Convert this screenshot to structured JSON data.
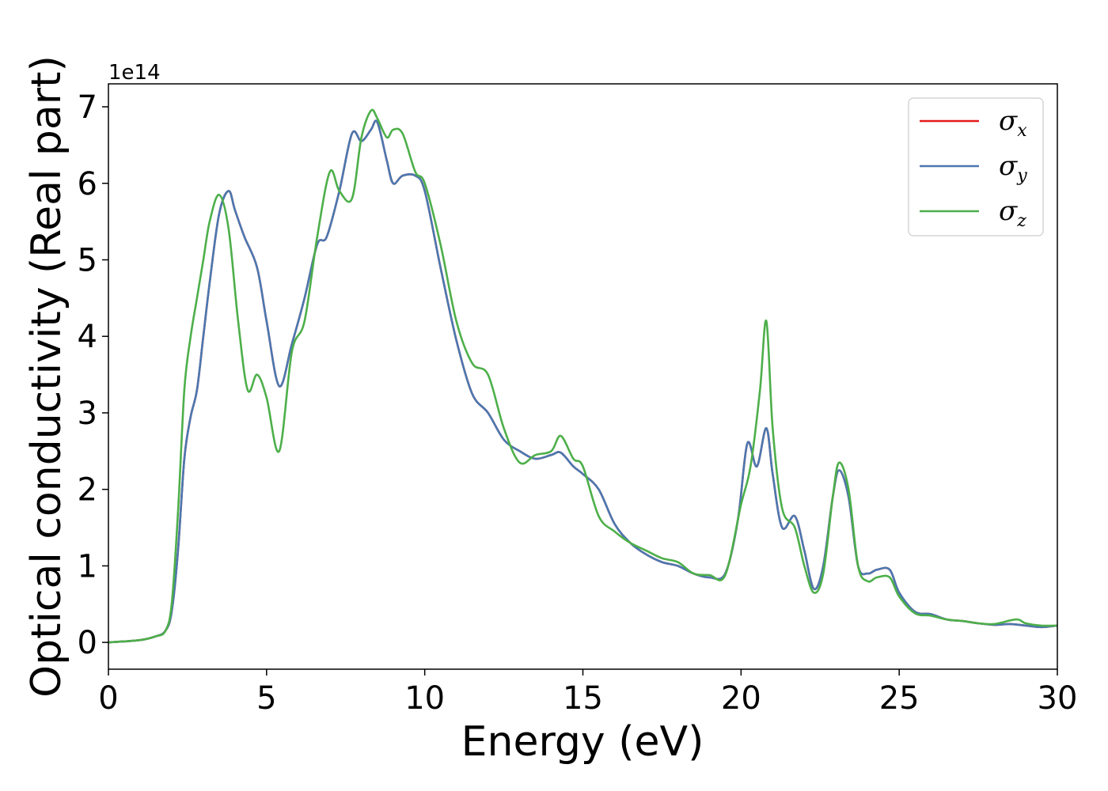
{
  "chart_data": {
    "type": "line",
    "xlabel": "Energy (eV)",
    "ylabel": "Optical conductivity (Real part)",
    "y_offset_label": "1e14",
    "xlim": [
      0,
      30
    ],
    "ylim": [
      -0.35,
      7.3
    ],
    "xticks": [
      0,
      5,
      10,
      15,
      20,
      25,
      30
    ],
    "yticks": [
      0,
      1,
      2,
      3,
      4,
      5,
      6,
      7
    ],
    "legend_position": "top-right",
    "series": [
      {
        "name": "σ",
        "sub": "x",
        "color": "#e41a1c",
        "x": [
          0,
          1,
          1.5,
          1.8,
          2.0,
          2.2,
          2.4,
          2.6,
          2.8,
          3.0,
          3.2,
          3.5,
          3.8,
          4.0,
          4.3,
          4.7,
          5.0,
          5.4,
          5.8,
          6.2,
          6.6,
          6.9,
          7.3,
          7.7,
          8.0,
          8.3,
          8.5,
          8.8,
          9.0,
          9.3,
          9.7,
          10.0,
          10.5,
          11.0,
          11.5,
          12.0,
          12.5,
          13.0,
          13.5,
          14.0,
          14.3,
          14.7,
          15.0,
          15.5,
          16.0,
          16.5,
          17.0,
          17.5,
          18.0,
          18.5,
          19.0,
          19.5,
          19.9,
          20.2,
          20.5,
          20.8,
          21.0,
          21.3,
          21.7,
          22.0,
          22.3,
          22.6,
          22.9,
          23.1,
          23.4,
          23.7,
          24.0,
          24.3,
          24.7,
          25.0,
          25.5,
          26.0,
          26.5,
          27.0,
          27.5,
          28.0,
          28.5,
          29.0,
          29.5,
          30.0
        ],
        "y": [
          0.0,
          0.03,
          0.08,
          0.15,
          0.4,
          1.2,
          2.4,
          2.95,
          3.3,
          4.0,
          4.7,
          5.6,
          5.9,
          5.65,
          5.3,
          4.9,
          4.2,
          3.35,
          3.9,
          4.5,
          5.2,
          5.3,
          5.9,
          6.65,
          6.55,
          6.7,
          6.8,
          6.3,
          6.0,
          6.1,
          6.1,
          5.9,
          4.9,
          3.95,
          3.25,
          3.0,
          2.65,
          2.5,
          2.4,
          2.45,
          2.48,
          2.3,
          2.2,
          2.0,
          1.55,
          1.3,
          1.15,
          1.05,
          1.0,
          0.9,
          0.85,
          0.9,
          1.6,
          2.6,
          2.3,
          2.8,
          2.2,
          1.5,
          1.65,
          1.2,
          0.7,
          1.0,
          1.9,
          2.25,
          1.9,
          1.0,
          0.9,
          0.95,
          0.95,
          0.65,
          0.4,
          0.37,
          0.3,
          0.28,
          0.25,
          0.23,
          0.24,
          0.22,
          0.2,
          0.22
        ]
      },
      {
        "name": "σ",
        "sub": "y",
        "color": "#4a78b0",
        "x": [
          0,
          1,
          1.5,
          1.8,
          2.0,
          2.2,
          2.4,
          2.6,
          2.8,
          3.0,
          3.2,
          3.5,
          3.8,
          4.0,
          4.3,
          4.7,
          5.0,
          5.4,
          5.8,
          6.2,
          6.6,
          6.9,
          7.3,
          7.7,
          8.0,
          8.3,
          8.5,
          8.8,
          9.0,
          9.3,
          9.7,
          10.0,
          10.5,
          11.0,
          11.5,
          12.0,
          12.5,
          13.0,
          13.5,
          14.0,
          14.3,
          14.7,
          15.0,
          15.5,
          16.0,
          16.5,
          17.0,
          17.5,
          18.0,
          18.5,
          19.0,
          19.5,
          19.9,
          20.2,
          20.5,
          20.8,
          21.0,
          21.3,
          21.7,
          22.0,
          22.3,
          22.6,
          22.9,
          23.1,
          23.4,
          23.7,
          24.0,
          24.3,
          24.7,
          25.0,
          25.5,
          26.0,
          26.5,
          27.0,
          27.5,
          28.0,
          28.5,
          29.0,
          29.5,
          30.0
        ],
        "y": [
          0.0,
          0.03,
          0.08,
          0.15,
          0.4,
          1.2,
          2.4,
          2.95,
          3.3,
          4.0,
          4.7,
          5.6,
          5.9,
          5.65,
          5.3,
          4.9,
          4.2,
          3.35,
          3.9,
          4.5,
          5.2,
          5.3,
          5.9,
          6.65,
          6.55,
          6.7,
          6.8,
          6.3,
          6.0,
          6.1,
          6.1,
          5.9,
          4.9,
          3.95,
          3.25,
          3.0,
          2.65,
          2.5,
          2.4,
          2.45,
          2.48,
          2.3,
          2.2,
          2.0,
          1.55,
          1.3,
          1.15,
          1.05,
          1.0,
          0.9,
          0.85,
          0.9,
          1.6,
          2.6,
          2.3,
          2.8,
          2.2,
          1.5,
          1.65,
          1.2,
          0.7,
          1.0,
          1.9,
          2.25,
          1.9,
          1.0,
          0.9,
          0.95,
          0.95,
          0.65,
          0.4,
          0.37,
          0.3,
          0.28,
          0.25,
          0.23,
          0.24,
          0.22,
          0.2,
          0.22
        ]
      },
      {
        "name": "σ",
        "sub": "z",
        "color": "#4daf4a",
        "x": [
          0,
          1,
          1.5,
          1.8,
          2.0,
          2.2,
          2.4,
          2.6,
          2.8,
          3.0,
          3.2,
          3.5,
          3.8,
          4.1,
          4.4,
          4.7,
          5.0,
          5.4,
          5.8,
          6.2,
          6.6,
          7.0,
          7.3,
          7.7,
          8.0,
          8.3,
          8.5,
          8.8,
          9.0,
          9.3,
          9.7,
          10.0,
          10.5,
          11.0,
          11.5,
          12.0,
          12.5,
          13.0,
          13.5,
          14.0,
          14.3,
          14.7,
          15.0,
          15.5,
          16.0,
          16.5,
          17.0,
          17.5,
          18.0,
          18.5,
          19.0,
          19.5,
          20.0,
          20.3,
          20.6,
          20.8,
          21.0,
          21.3,
          21.7,
          22.0,
          22.3,
          22.6,
          22.9,
          23.1,
          23.4,
          23.7,
          24.0,
          24.3,
          24.7,
          25.0,
          25.5,
          26.0,
          26.5,
          27.0,
          27.5,
          28.0,
          28.7,
          29.0,
          29.5,
          30.0
        ],
        "y": [
          0.0,
          0.03,
          0.08,
          0.15,
          0.5,
          1.7,
          3.3,
          4.0,
          4.5,
          5.0,
          5.5,
          5.85,
          5.4,
          4.2,
          3.3,
          3.5,
          3.2,
          2.5,
          3.8,
          4.2,
          5.3,
          6.15,
          5.9,
          5.8,
          6.6,
          6.95,
          6.85,
          6.6,
          6.7,
          6.65,
          6.15,
          6.0,
          5.2,
          4.2,
          3.65,
          3.5,
          2.8,
          2.35,
          2.45,
          2.5,
          2.7,
          2.4,
          2.3,
          1.65,
          1.45,
          1.3,
          1.2,
          1.1,
          1.05,
          0.9,
          0.88,
          0.88,
          1.8,
          2.3,
          3.3,
          4.2,
          2.8,
          1.75,
          1.5,
          1.0,
          0.65,
          0.9,
          1.9,
          2.35,
          2.0,
          1.0,
          0.8,
          0.85,
          0.85,
          0.6,
          0.38,
          0.35,
          0.3,
          0.28,
          0.25,
          0.24,
          0.3,
          0.25,
          0.22,
          0.22
        ]
      }
    ]
  }
}
